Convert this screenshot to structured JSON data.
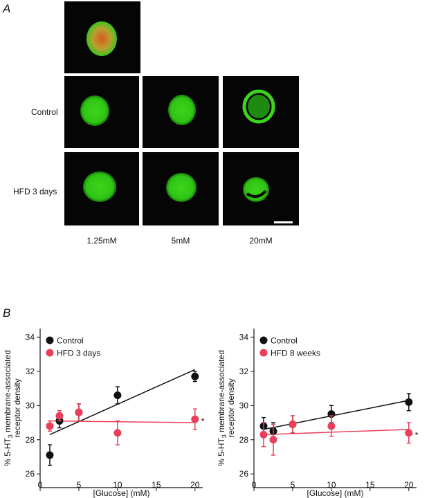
{
  "panel_a": {
    "label": "A",
    "rows": [
      "Control",
      "HFD 3 days"
    ],
    "columns": [
      "1.25mM",
      "5mM",
      "20mM"
    ]
  },
  "panel_b": {
    "label": "B"
  },
  "chart_data": [
    {
      "type": "scatter",
      "xlabel": "[Glucose] (mM)",
      "ylabel": [
        "% 5-HT",
        "3",
        " membrane-associated",
        "receptor density"
      ],
      "x": [
        1.25,
        2.5,
        5,
        10,
        20
      ],
      "xlim": [
        0,
        21
      ],
      "xticks": [
        0,
        5,
        10,
        15,
        20
      ],
      "ylim": [
        25.2,
        34.5
      ],
      "yticks": [
        26,
        28,
        30,
        32,
        34
      ],
      "legend": "upper left",
      "series": [
        {
          "name": "Control",
          "color": "#111111",
          "values": [
            27.1,
            29.1,
            29.6,
            30.6,
            31.7
          ],
          "errors": [
            0.6,
            0.4,
            0.5,
            0.5,
            0.3
          ]
        },
        {
          "name": "HFD 3 days",
          "color": "#e8405a",
          "values": [
            28.8,
            29.4,
            29.6,
            28.4,
            29.2
          ],
          "errors": [
            0.3,
            0.3,
            0.5,
            0.7,
            0.6
          ],
          "end_label": "*"
        }
      ],
      "fits": [
        {
          "color": "#111111",
          "x": [
            1.25,
            20
          ],
          "values": [
            28.3,
            32.1
          ]
        },
        {
          "color": "#e8405a",
          "x": [
            1.25,
            20
          ],
          "values": [
            29.1,
            29.0
          ]
        }
      ]
    },
    {
      "type": "scatter",
      "xlabel": "[Glucose] (mM)",
      "ylabel": [
        "% 5-HT",
        "3",
        " membrane-associated",
        "receptor density"
      ],
      "x": [
        1.25,
        2.5,
        5,
        10,
        20
      ],
      "xlim": [
        0,
        21
      ],
      "xticks": [
        0,
        5,
        10,
        15,
        20
      ],
      "ylim": [
        25.2,
        34.5
      ],
      "yticks": [
        26,
        28,
        30,
        32,
        34
      ],
      "legend": "upper left",
      "series": [
        {
          "name": "Control",
          "color": "#111111",
          "values": [
            28.8,
            28.5,
            28.9,
            29.5,
            30.2
          ],
          "errors": [
            0.5,
            0.5,
            0.5,
            0.5,
            0.5
          ]
        },
        {
          "name": "HFD 8 weeks",
          "color": "#e8405a",
          "values": [
            28.3,
            28.0,
            28.9,
            28.8,
            28.4
          ],
          "errors": [
            0.7,
            0.9,
            0.5,
            0.6,
            0.6
          ],
          "end_label": "*"
        }
      ],
      "fits": [
        {
          "color": "#111111",
          "x": [
            1.25,
            20
          ],
          "values": [
            28.6,
            30.3
          ]
        },
        {
          "color": "#e8405a",
          "x": [
            1.25,
            20
          ],
          "values": [
            28.3,
            28.6
          ]
        }
      ]
    }
  ]
}
